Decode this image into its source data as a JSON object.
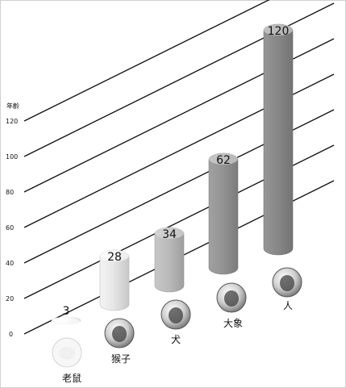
{
  "chart_data": {
    "type": "bar",
    "ylabel": "年齡",
    "ylim": [
      0,
      120
    ],
    "yticks": [
      "0",
      "20",
      "40",
      "60",
      "80",
      "100",
      "120"
    ],
    "categories": [
      "老鼠",
      "猴子",
      "犬",
      "大象",
      "人"
    ],
    "values": [
      3,
      28,
      34,
      62,
      120
    ],
    "value_labels": [
      "3",
      "28",
      "34",
      "62",
      "120"
    ],
    "colors": {
      "mouse": "#f7f7f7",
      "monkey": "#e7e7e7",
      "dog": "#bdbdbd",
      "elephant": "#9a9a9a",
      "human": "#8a8a8a",
      "grid": "#111111",
      "text": "#111111"
    },
    "icons": [
      "mouse-photo-icon",
      "monkey-photo-icon",
      "dog-photo-icon",
      "elephant-photo-icon",
      "human-photo-icon"
    ]
  }
}
